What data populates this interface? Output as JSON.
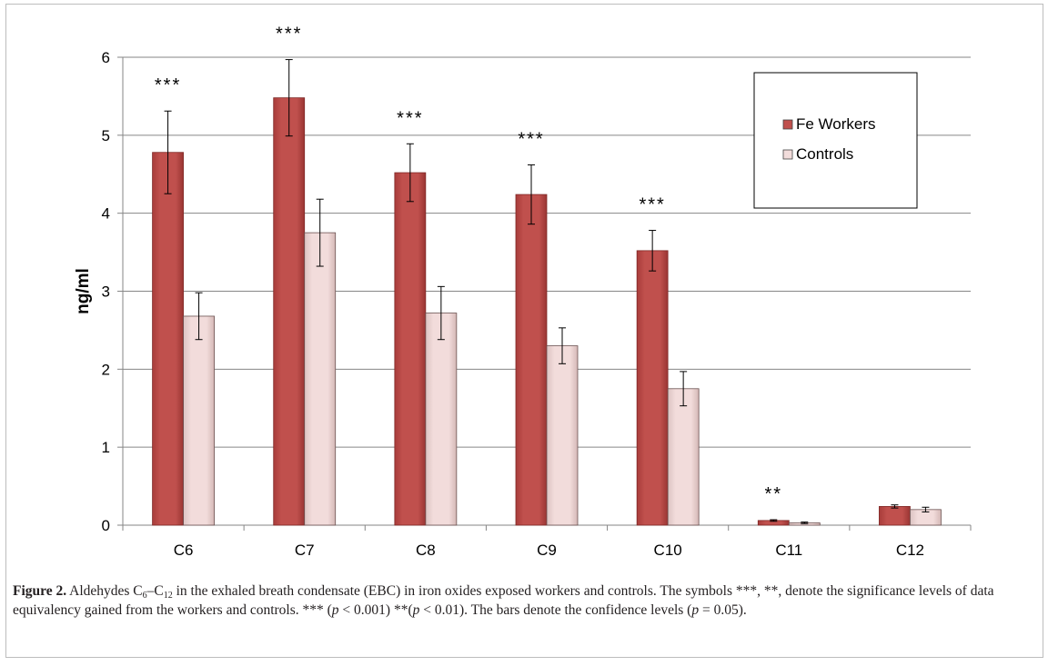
{
  "chart_data": {
    "type": "bar",
    "ylabel": "ng/ml",
    "xlabel": "",
    "ylim": [
      0,
      6
    ],
    "yticks": [
      "0",
      "1",
      "2",
      "3",
      "4",
      "5",
      "6"
    ],
    "grid": true,
    "legend_position": "top-right",
    "categories": [
      "C6",
      "C7",
      "C8",
      "C9",
      "C10",
      "C11",
      "C12"
    ],
    "series": [
      {
        "name": "Fe Workers",
        "color": "#c0504d",
        "values": [
          4.78,
          5.48,
          4.52,
          4.24,
          3.52,
          0.06,
          0.24
        ],
        "error": [
          0.53,
          0.49,
          0.37,
          0.38,
          0.26,
          0.01,
          0.02
        ]
      },
      {
        "name": "Controls",
        "color": "#f2dcdb",
        "values": [
          2.68,
          3.75,
          2.72,
          2.3,
          1.75,
          0.03,
          0.2
        ],
        "error": [
          0.3,
          0.43,
          0.34,
          0.23,
          0.22,
          0.01,
          0.03
        ]
      }
    ],
    "annotations": [
      "***",
      "***",
      "***",
      "***",
      "***",
      "**",
      ""
    ]
  },
  "caption": {
    "label": "Figure 2.",
    "seg1": "  Aldehydes C",
    "sub1": "6",
    "seg2": "–C",
    "sub2": "12",
    "seg3": " in the exhaled breath condensate (EBC) in iron oxides exposed workers and controls. The symbols ***, **, denote the significance levels of data equivalency gained from the workers and controls. *** (",
    "p1": "p",
    "seg4": " < 0.001) **(",
    "p2": "p",
    "seg5": " < 0.01). The bars denote the confidence levels (",
    "p3": "p",
    "seg6": " = 0.05)."
  }
}
